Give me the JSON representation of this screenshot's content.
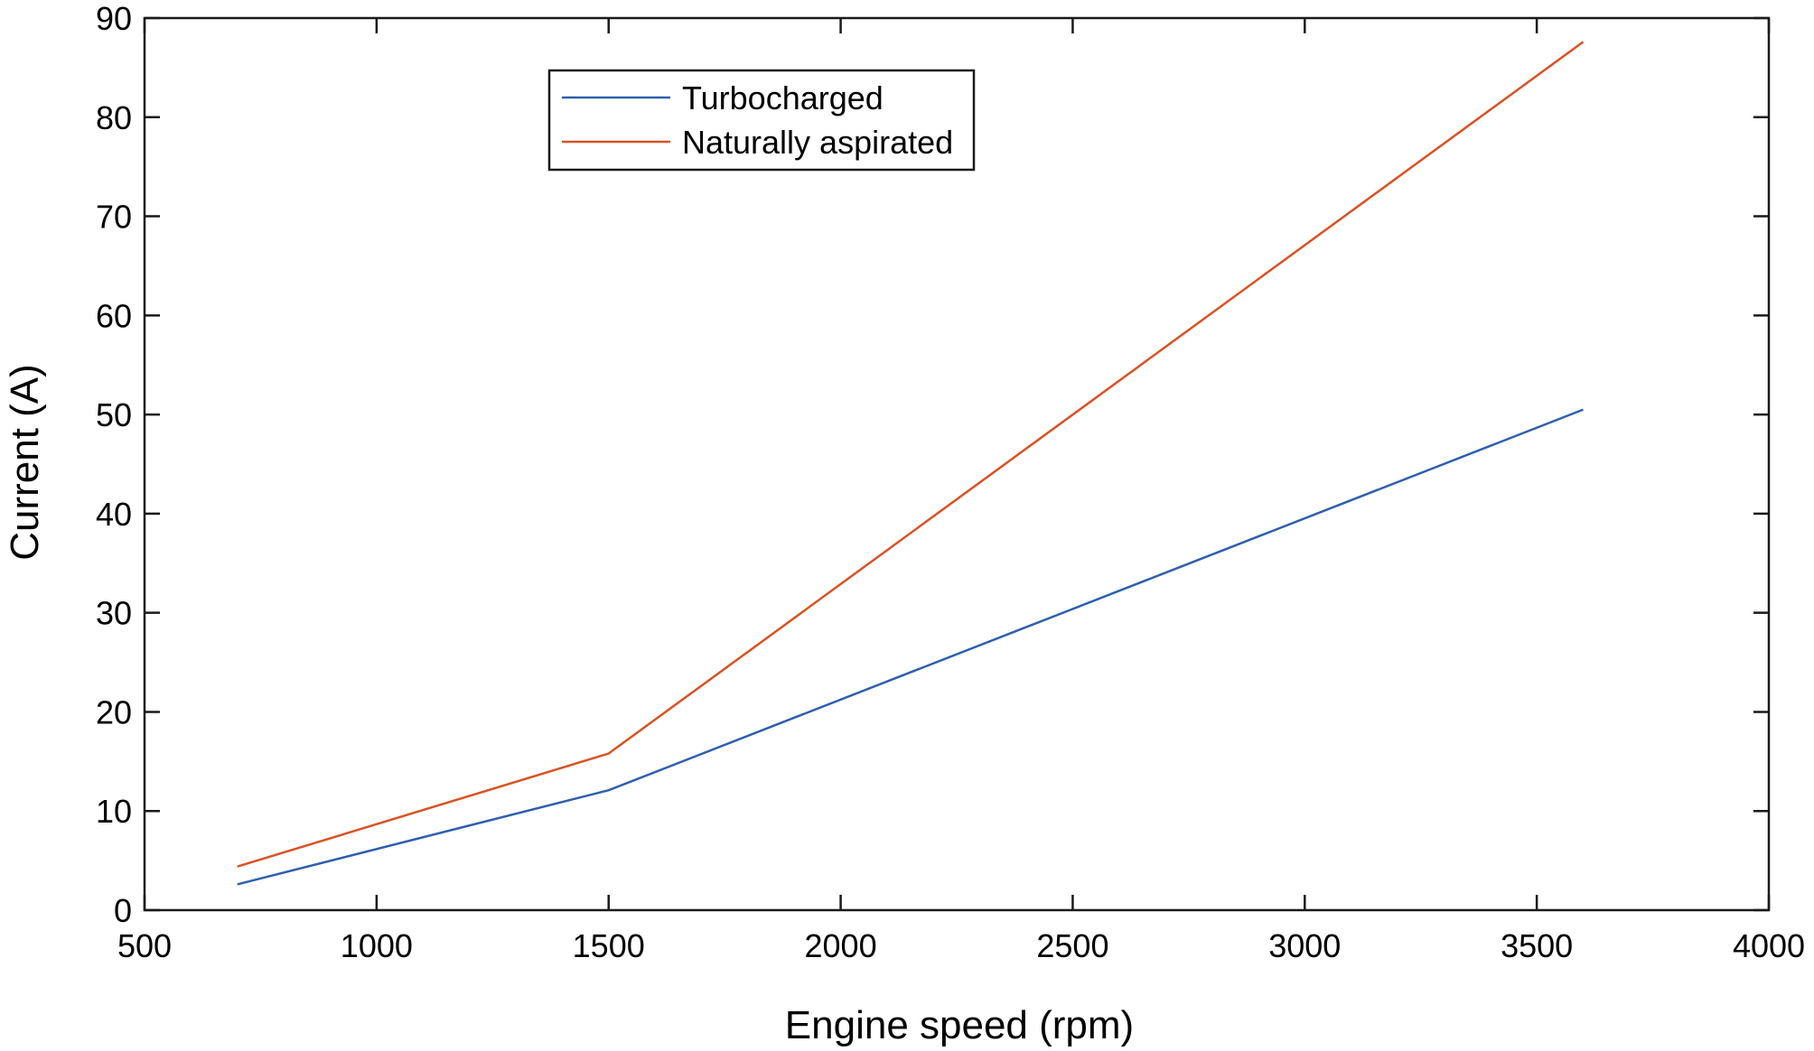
{
  "chart_data": {
    "type": "line",
    "title": "",
    "xlabel": "Engine speed (rpm)",
    "ylabel": "Current (A)",
    "xlim": [
      500,
      4000
    ],
    "ylim": [
      0,
      90
    ],
    "xticks": [
      "500",
      "1000",
      "1500",
      "2000",
      "2500",
      "3000",
      "3500",
      "4000"
    ],
    "yticks": [
      "0",
      "10",
      "20",
      "30",
      "40",
      "50",
      "60",
      "70",
      "80",
      "90"
    ],
    "grid": false,
    "legend_position": "top-center",
    "x": [
      700,
      1500,
      3600
    ],
    "series": [
      {
        "name": "Turbocharged",
        "color": "#2e5fae",
        "values": [
          2.6,
          12.1,
          50.5
        ]
      },
      {
        "name": "Naturally aspirated",
        "color": "#d95224",
        "values": [
          4.4,
          15.8,
          87.6
        ]
      }
    ]
  }
}
